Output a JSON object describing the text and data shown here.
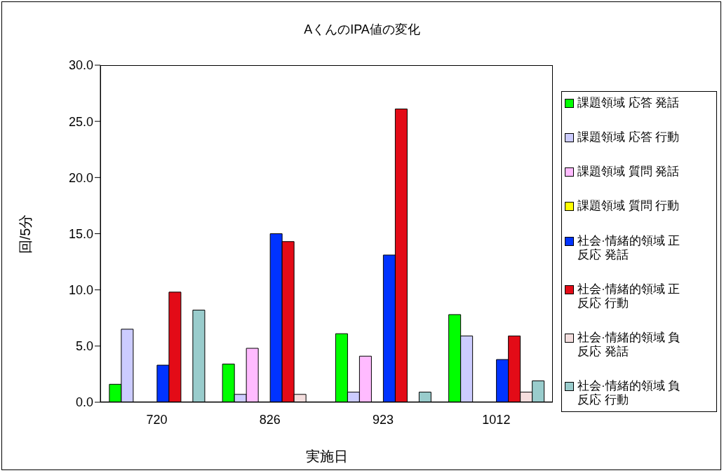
{
  "chart_data": {
    "type": "bar",
    "title": "AくんのIPA値の変化",
    "xlabel": "実施日",
    "ylabel": "回/5分",
    "categories": [
      "720",
      "826",
      "923",
      "1012"
    ],
    "series": [
      {
        "name": "課題領域 応答 発話",
        "color": "#00ff00",
        "values": [
          1.6,
          3.4,
          6.1,
          7.8
        ]
      },
      {
        "name": "課題領域 応答 行動",
        "color": "#ccccff",
        "values": [
          6.5,
          0.7,
          0.9,
          5.9
        ]
      },
      {
        "name": "課題領域 質問 発話",
        "color": "#ffbbff",
        "values": [
          0,
          4.8,
          4.1,
          0
        ]
      },
      {
        "name": "課題領域 質問 行動",
        "color": "#ffff00",
        "values": [
          0,
          0,
          0,
          0
        ]
      },
      {
        "name": "社会·情緒的領域 正反応 発話",
        "color": "#0033ff",
        "values": [
          3.3,
          15.0,
          13.1,
          3.8
        ]
      },
      {
        "name": "社会·情緒的領域 正反応 行動",
        "color": "#e30b17",
        "values": [
          9.8,
          14.3,
          26.1,
          5.9
        ]
      },
      {
        "name": "社会·情緒的領域 負反応 発話",
        "color": "#f4dede",
        "values": [
          0,
          0.7,
          0,
          0.9
        ]
      },
      {
        "name": "社会·情緒的領域 負反応 行動",
        "color": "#99cccc",
        "values": [
          8.2,
          0,
          0.9,
          1.9
        ]
      }
    ],
    "ylim": [
      0,
      30
    ],
    "yticks": [
      {
        "value": 0,
        "label": "0.0"
      },
      {
        "value": 5,
        "label": "5.0"
      },
      {
        "value": 10,
        "label": "10.0"
      },
      {
        "value": 15,
        "label": "15.0"
      },
      {
        "value": 20,
        "label": "20.0"
      },
      {
        "value": 25,
        "label": "25.0"
      },
      {
        "value": 30,
        "label": "30.0"
      }
    ],
    "grid": false,
    "legend": "right"
  }
}
